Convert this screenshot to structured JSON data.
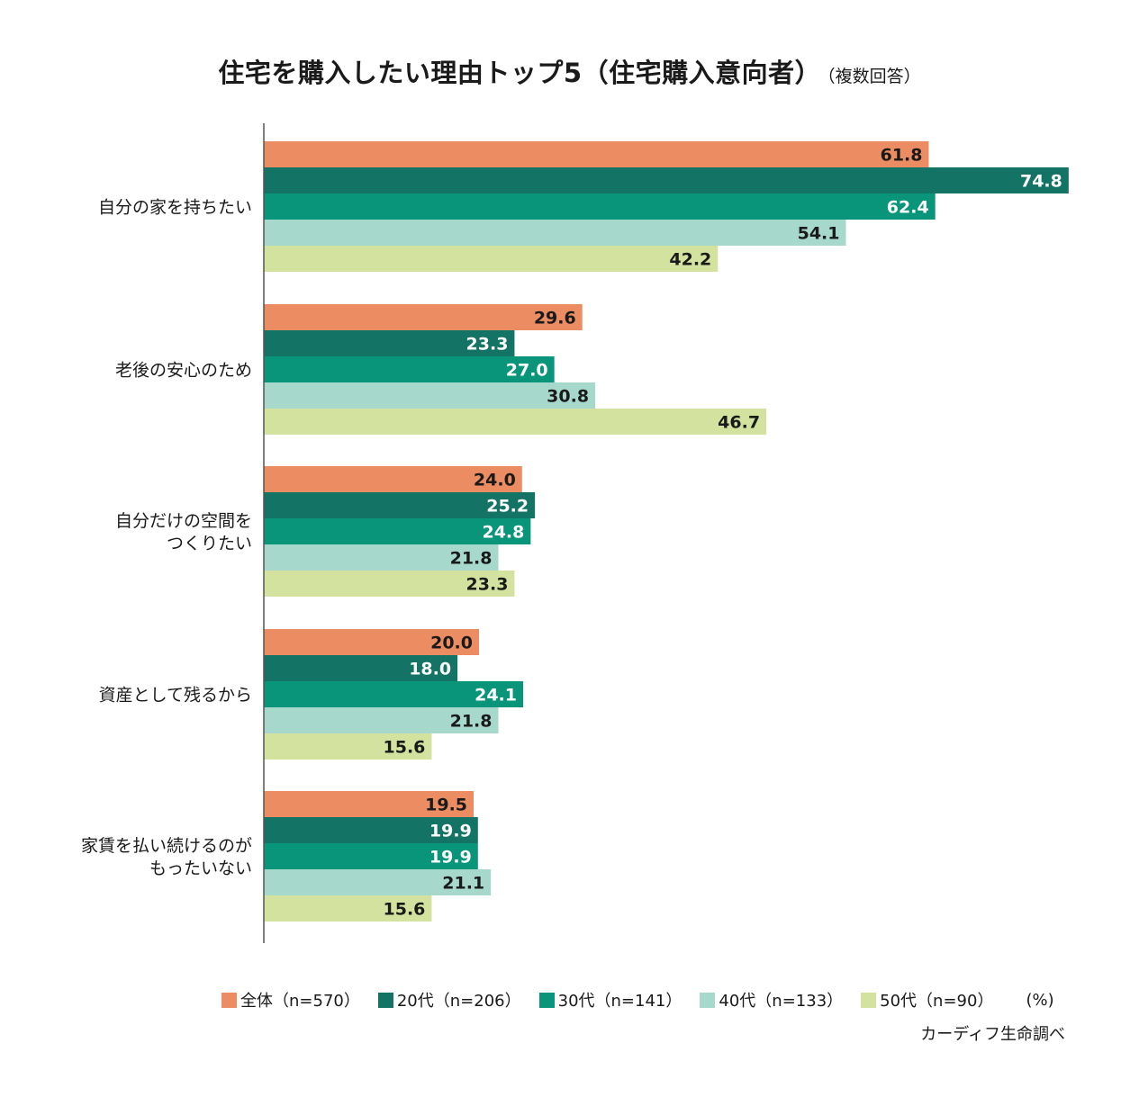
{
  "chart_data": {
    "type": "bar",
    "orientation": "horizontal",
    "title": "住宅を購入したい理由トップ5（住宅購入意向者）",
    "subtitle": "（複数回答）",
    "unit": "(%)",
    "source": "カーディフ生命調べ",
    "categories": [
      [
        "自分の家を持ちたい"
      ],
      [
        "老後の安心のため"
      ],
      [
        "自分だけの空間を",
        "つくりたい"
      ],
      [
        "資産として残るから"
      ],
      [
        "家賃を払い続けるのが",
        "もったいない"
      ]
    ],
    "series": [
      {
        "name": "全体（n=570）",
        "color": "#ec8c62",
        "label_color": "#1a1a1a",
        "values": [
          61.8,
          29.6,
          24.0,
          20.0,
          19.5
        ]
      },
      {
        "name": "20代（n=206）",
        "color": "#137465",
        "label_color": "#ffffff",
        "values": [
          74.8,
          23.3,
          25.2,
          18.0,
          19.9
        ]
      },
      {
        "name": "30代（n=141）",
        "color": "#08957a",
        "label_color": "#ffffff",
        "values": [
          62.4,
          27.0,
          24.8,
          24.1,
          19.9
        ]
      },
      {
        "name": "40代（n=133）",
        "color": "#a6d8cc",
        "label_color": "#1a1a1a",
        "values": [
          54.1,
          30.8,
          21.8,
          21.8,
          21.1
        ]
      },
      {
        "name": "50代（n=90）",
        "color": "#d3e29f",
        "label_color": "#1a1a1a",
        "values": [
          42.2,
          46.7,
          23.3,
          15.6,
          15.6
        ]
      }
    ],
    "xlim": [
      0,
      75
    ],
    "grid": false
  }
}
